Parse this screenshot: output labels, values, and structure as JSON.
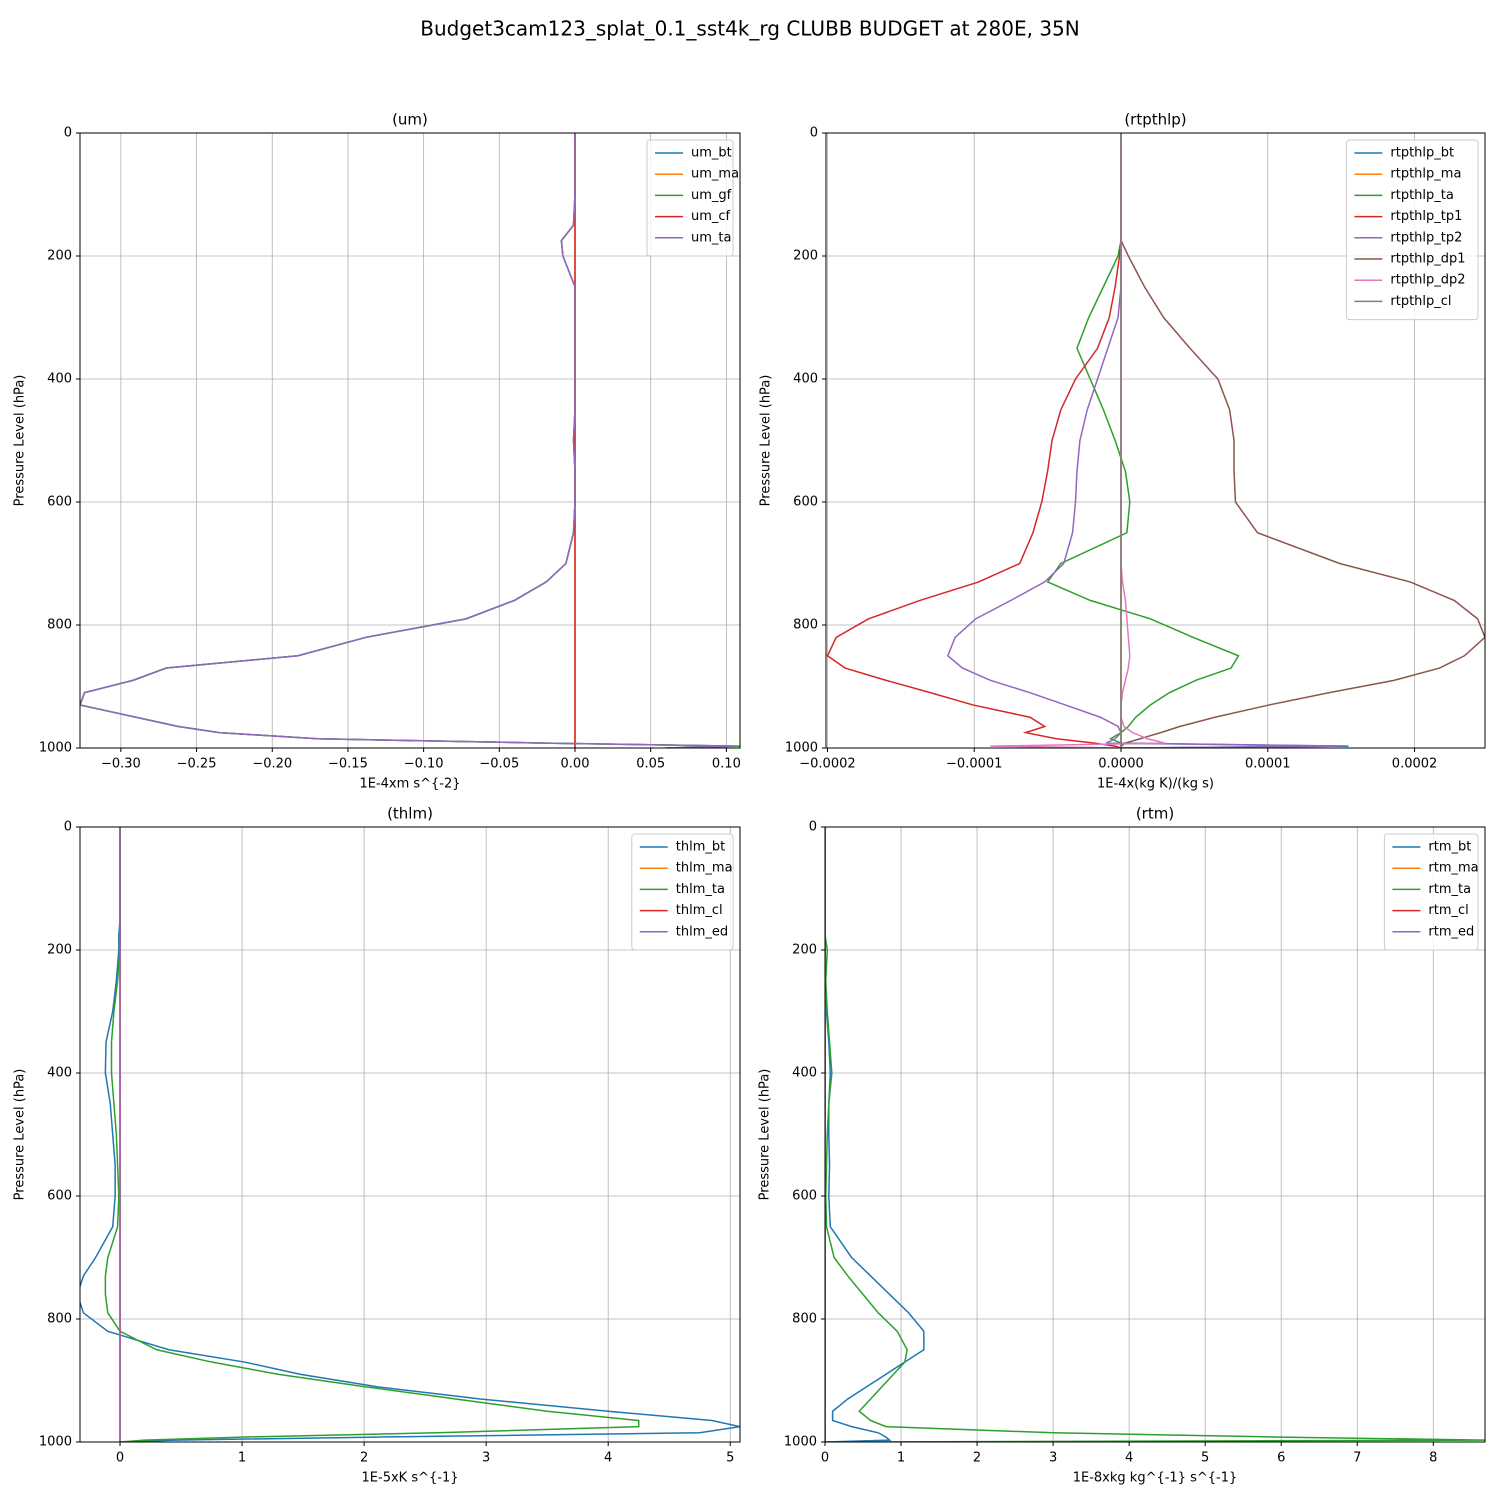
{
  "title": "Budget3cam123_splat_0.1_sst4k_rg CLUBB BUDGET at 280E, 35N",
  "chart_data": [
    {
      "type": "line",
      "title": "(um)",
      "xlabel": "1E-4xm s^{-2}",
      "ylabel": "Pressure Level (hPa)",
      "grid": true,
      "legend": "upper right",
      "xlim": [
        -0.327,
        0.109
      ],
      "ylim": [
        1000,
        0
      ],
      "xticks": [
        {
          "value": -0.3,
          "label": "−0.30"
        },
        {
          "value": -0.25,
          "label": "−0.25"
        },
        {
          "value": -0.2,
          "label": "−0.20"
        },
        {
          "value": -0.15,
          "label": "−0.15"
        },
        {
          "value": -0.1,
          "label": "−0.10"
        },
        {
          "value": -0.05,
          "label": "−0.05"
        },
        {
          "value": 0,
          "label": "0.00"
        },
        0.05,
        {
          "value": 0.1,
          "label": "0.10"
        }
      ],
      "yticks": [
        0,
        200,
        400,
        600,
        800,
        1000
      ],
      "y": [
        0,
        100,
        150,
        175,
        200,
        250,
        300,
        350,
        400,
        450,
        500,
        550,
        600,
        650,
        700,
        730,
        760,
        790,
        820,
        850,
        870,
        890,
        910,
        930,
        950,
        965,
        975,
        985,
        992,
        997,
        1000
      ],
      "series": [
        {
          "name": "um_bt",
          "color": "#1f77b4",
          "values": [
            0,
            0,
            -0.001,
            -0.009,
            -0.008,
            0,
            0,
            0,
            0,
            0,
            -0.001,
            0,
            0,
            -0.001,
            -0.006,
            -0.019,
            -0.04,
            -0.072,
            -0.138,
            -0.183,
            -0.27,
            -0.292,
            -0.324,
            -0.327,
            -0.29,
            -0.262,
            -0.235,
            -0.17,
            -0.02,
            0.105,
            0.06
          ]
        },
        {
          "name": "um_ma",
          "color": "#ff7f0e",
          "values": [
            0,
            0,
            0,
            0,
            0,
            0,
            0,
            0,
            0,
            0,
            0,
            0,
            0,
            0,
            0,
            0,
            0,
            0,
            0,
            0,
            0,
            0,
            0,
            0,
            0,
            0,
            0,
            0,
            0,
            0,
            0
          ]
        },
        {
          "name": "um_gf",
          "color": "#2ca02c",
          "values": [
            0,
            0,
            -0.001,
            -0.009,
            -0.008,
            0,
            0,
            0,
            0,
            0,
            -0.001,
            0,
            0,
            -0.001,
            -0.006,
            -0.019,
            -0.04,
            -0.072,
            -0.138,
            -0.183,
            -0.27,
            -0.292,
            -0.324,
            -0.327,
            -0.29,
            -0.262,
            -0.235,
            -0.17,
            -0.02,
            0.11,
            0.06
          ]
        },
        {
          "name": "um_cf",
          "color": "#d62728",
          "values": [
            0,
            0,
            0,
            0,
            0,
            0,
            0,
            0,
            0,
            0,
            0,
            0,
            0,
            0,
            0,
            0,
            0,
            0,
            0,
            0,
            0,
            0,
            0,
            0,
            0,
            0,
            0,
            0,
            0,
            0,
            0
          ]
        },
        {
          "name": "um_ta",
          "color": "#9467bd",
          "values": [
            0,
            0,
            -0.001,
            -0.009,
            -0.008,
            0,
            0,
            0,
            0,
            0,
            -0.001,
            0,
            0,
            -0.001,
            -0.006,
            -0.019,
            -0.04,
            -0.072,
            -0.138,
            -0.183,
            -0.27,
            -0.292,
            -0.324,
            -0.327,
            -0.29,
            -0.262,
            -0.235,
            -0.17,
            -0.02,
            0.105,
            0.06
          ]
        }
      ]
    },
    {
      "type": "line",
      "title": "(rtpthlp)",
      "xlabel": "1E-4x(kg K)/(kg s)",
      "ylabel": "Pressure Level (hPa)",
      "grid": true,
      "legend": "upper right",
      "xlim": [
        -0.000201,
        0.000248
      ],
      "ylim": [
        1000,
        0
      ],
      "xticks": [
        {
          "value": -0.0002,
          "label": "−0.0002"
        },
        {
          "value": -0.0001,
          "label": "−0.0001"
        },
        {
          "value": 0,
          "label": "0.0000"
        },
        0.0001,
        0.0002
      ],
      "yticks": [
        0,
        200,
        400,
        600,
        800,
        1000
      ],
      "y": [
        0,
        100,
        150,
        175,
        200,
        250,
        300,
        350,
        400,
        450,
        500,
        550,
        600,
        650,
        700,
        730,
        760,
        790,
        820,
        850,
        870,
        890,
        910,
        930,
        950,
        965,
        975,
        985,
        992,
        997,
        1000
      ],
      "series": [
        {
          "name": "rtpthlp_bt",
          "color": "#1f77b4",
          "values": [
            0,
            0,
            0,
            0,
            0,
            0,
            0,
            0,
            0,
            0,
            0,
            0,
            0,
            0,
            0,
            0,
            0,
            0,
            0,
            0,
            0,
            0,
            0,
            0,
            0,
            0,
            0,
            0,
            0,
            0.000155,
            0
          ]
        },
        {
          "name": "rtpthlp_ma",
          "color": "#ff7f0e",
          "values": [
            0,
            0,
            0,
            0,
            0,
            0,
            0,
            0,
            0,
            0,
            0,
            0,
            0,
            0,
            0,
            0,
            0,
            0,
            0,
            0,
            0,
            0,
            0,
            0,
            0,
            0,
            0,
            0,
            0,
            0,
            0
          ]
        },
        {
          "name": "rtpthlp_ta",
          "color": "#2ca02c",
          "values": [
            0,
            0,
            0,
            0,
            -2e-06,
            -1.2e-05,
            -2.2e-05,
            -3e-05,
            -2.1e-05,
            -1.2e-05,
            -4e-06,
            3e-06,
            6e-06,
            4e-06,
            -4.1e-05,
            -5e-05,
            -2.1e-05,
            2e-05,
            4.9e-05,
            8e-05,
            7.5e-05,
            5.1e-05,
            3.3e-05,
            2e-05,
            1e-05,
            5e-06,
            0,
            -7e-06,
            0,
            0,
            0
          ]
        },
        {
          "name": "rtpthlp_tp1",
          "color": "#d62728",
          "values": [
            0,
            0,
            0,
            0,
            -1e-06,
            -4e-06,
            -8e-06,
            -1.6e-05,
            -3.1e-05,
            -4.1e-05,
            -4.7e-05,
            -5e-05,
            -5.4e-05,
            -6e-05,
            -6.9e-05,
            -9.7e-05,
            -0.000137,
            -0.000172,
            -0.000194,
            -0.0002,
            -0.000188,
            -0.00016,
            -0.00013,
            -0.000101,
            -6.2e-05,
            -5.2e-05,
            -6.5e-05,
            -4.4e-05,
            -1.8e-05,
            -4e-06,
            0
          ]
        },
        {
          "name": "rtpthlp_tp2",
          "color": "#9467bd",
          "values": [
            0,
            0,
            0,
            0,
            0,
            0,
            -2e-06,
            -9e-06,
            -1.6e-05,
            -2.3e-05,
            -2.8e-05,
            -3e-05,
            -3.1e-05,
            -3.3e-05,
            -3.9e-05,
            -5.2e-05,
            -7.5e-05,
            -9.9e-05,
            -0.000113,
            -0.000118,
            -0.000108,
            -8.9e-05,
            -6.2e-05,
            -3.8e-05,
            -1.4e-05,
            -2e-06,
            0,
            -4e-06,
            -1e-05,
            0.00015,
            0
          ]
        },
        {
          "name": "rtpthlp_dp1",
          "color": "#8c564b",
          "values": [
            0,
            0,
            0,
            0,
            5e-06,
            1.6e-05,
            2.9e-05,
            4.7e-05,
            6.6e-05,
            7.4e-05,
            7.7e-05,
            7.7e-05,
            7.8e-05,
            9.3e-05,
            0.000149,
            0.000197,
            0.000227,
            0.000243,
            0.000248,
            0.000234,
            0.000217,
            0.000186,
            0.000142,
            0.000101,
            6.4e-05,
            4e-05,
            2.7e-05,
            1.3e-05,
            3e-06,
            0,
            0
          ]
        },
        {
          "name": "rtpthlp_dp2",
          "color": "#e377c2",
          "values": [
            0,
            0,
            0,
            0,
            0,
            0,
            0,
            0,
            0,
            0,
            0,
            0,
            0,
            0,
            0,
            1e-06,
            3e-06,
            4e-06,
            5e-06,
            6e-06,
            5e-06,
            3e-06,
            1e-06,
            0,
            0,
            2e-06,
            8e-06,
            1.8e-05,
            3e-05,
            -8.9e-05,
            0
          ]
        },
        {
          "name": "rtpthlp_cl",
          "color": "#7f7f7f",
          "values": [
            0,
            0,
            0,
            0,
            0,
            0,
            0,
            0,
            0,
            0,
            0,
            0,
            0,
            0,
            0,
            0,
            0,
            0,
            0,
            0,
            0,
            0,
            0,
            0,
            0,
            0,
            0,
            0,
            0,
            0,
            0
          ]
        }
      ]
    },
    {
      "type": "line",
      "title": "(thlm)",
      "xlabel": "1E-5xK s^{-1}",
      "ylabel": "Pressure Level (hPa)",
      "grid": true,
      "legend": "upper right",
      "xlim": [
        -0.328,
        5.08
      ],
      "ylim": [
        1000,
        0
      ],
      "xticks": [
        0,
        1,
        2,
        3,
        4,
        5
      ],
      "yticks": [
        0,
        200,
        400,
        600,
        800,
        1000
      ],
      "y": [
        0,
        100,
        150,
        175,
        200,
        250,
        300,
        350,
        400,
        450,
        500,
        550,
        600,
        650,
        700,
        730,
        760,
        790,
        820,
        850,
        870,
        890,
        910,
        930,
        950,
        965,
        975,
        985,
        992,
        997,
        1000
      ],
      "series": [
        {
          "name": "thlm_bt",
          "color": "#1f77b4",
          "values": [
            0,
            0,
            0,
            -0.01,
            -0.01,
            -0.03,
            -0.06,
            -0.115,
            -0.12,
            -0.08,
            -0.06,
            -0.04,
            -0.04,
            -0.06,
            -0.2,
            -0.3,
            -0.35,
            -0.3,
            -0.1,
            0.4,
            1.02,
            1.48,
            2.1,
            2.95,
            4.0,
            4.85,
            5.08,
            4.75,
            2.1,
            0.45,
            0
          ]
        },
        {
          "name": "thlm_ma",
          "color": "#ff7f0e",
          "values": [
            0,
            0,
            0,
            0,
            0,
            0,
            0,
            0,
            0,
            0,
            0,
            0,
            0,
            0,
            0,
            0,
            0,
            0,
            0,
            0,
            0,
            0,
            0,
            0,
            0,
            0,
            0,
            0,
            0,
            0,
            0
          ]
        },
        {
          "name": "thlm_ta",
          "color": "#2ca02c",
          "values": [
            0,
            0,
            0,
            0,
            0,
            -0.02,
            -0.05,
            -0.07,
            -0.07,
            -0.05,
            -0.03,
            -0.02,
            -0.01,
            -0.02,
            -0.1,
            -0.12,
            -0.12,
            -0.1,
            0,
            0.3,
            0.75,
            1.3,
            2.0,
            2.75,
            3.5,
            4.25,
            4.25,
            2.6,
            1.0,
            0.2,
            0
          ]
        },
        {
          "name": "thlm_cl",
          "color": "#d62728",
          "values": [
            0,
            0,
            0,
            0,
            0,
            0,
            0,
            0,
            0,
            0,
            0,
            0,
            0,
            0,
            0,
            0,
            0,
            0,
            0,
            0,
            0,
            0,
            0,
            0,
            0,
            0,
            0,
            0,
            0,
            0,
            0
          ]
        },
        {
          "name": "thlm_ed",
          "color": "#9467bd",
          "values": [
            0,
            0,
            0,
            0,
            0,
            0,
            0,
            0,
            0,
            0,
            0,
            0,
            0,
            0,
            0,
            0,
            0,
            0,
            0,
            0,
            0,
            0,
            0,
            0,
            0,
            0,
            0,
            0,
            0,
            0,
            0
          ]
        }
      ]
    },
    {
      "type": "line",
      "title": "(rtm)",
      "xlabel": "1E-8xkg kg^{-1} s^{-1}",
      "ylabel": "Pressure Level (hPa)",
      "grid": true,
      "legend": "upper right",
      "xlim": [
        0,
        8.68
      ],
      "ylim": [
        1000,
        0
      ],
      "xticks": [
        0,
        1,
        2,
        3,
        4,
        5,
        6,
        7,
        8
      ],
      "yticks": [
        0,
        200,
        400,
        600,
        800,
        1000
      ],
      "y": [
        0,
        100,
        150,
        175,
        200,
        250,
        300,
        350,
        400,
        450,
        500,
        550,
        600,
        650,
        700,
        730,
        760,
        790,
        820,
        850,
        870,
        890,
        910,
        930,
        950,
        965,
        975,
        985,
        992,
        997,
        1000
      ],
      "series": [
        {
          "name": "rtm_bt",
          "color": "#1f77b4",
          "values": [
            0,
            0,
            0,
            0,
            0,
            0,
            0.02,
            0.05,
            0.07,
            0.05,
            0.05,
            0.06,
            0.05,
            0.07,
            0.35,
            0.6,
            0.85,
            1.1,
            1.3,
            1.3,
            1.05,
            0.8,
            0.55,
            0.3,
            0.1,
            0.1,
            0.35,
            0.7,
            0.8,
            0.85,
            0
          ]
        },
        {
          "name": "rtm_ma",
          "color": "#ff7f0e",
          "values": [
            0,
            0,
            0,
            0,
            0,
            0,
            0,
            0,
            0,
            0,
            0,
            0,
            0,
            0,
            0,
            0,
            0,
            0,
            0,
            0,
            0,
            0,
            0,
            0,
            0,
            0,
            0,
            0,
            0,
            0,
            0
          ]
        },
        {
          "name": "rtm_ta",
          "color": "#2ca02c",
          "values": [
            0,
            0,
            0,
            0,
            0.03,
            0.01,
            0.03,
            0.06,
            0.09,
            0.05,
            0.03,
            0.02,
            0.01,
            0.02,
            0.12,
            0.3,
            0.5,
            0.7,
            0.95,
            1.08,
            1.05,
            0.9,
            0.75,
            0.6,
            0.45,
            0.6,
            0.8,
            3,
            6,
            8.7,
            0
          ]
        },
        {
          "name": "rtm_cl",
          "color": "#d62728",
          "values": [
            0,
            0,
            0,
            0,
            0,
            0,
            0,
            0,
            0,
            0,
            0,
            0,
            0,
            0,
            0,
            0,
            0,
            0,
            0,
            0,
            0,
            0,
            0,
            0,
            0,
            0,
            0,
            0,
            0,
            0,
            0
          ]
        },
        {
          "name": "rtm_ed",
          "color": "#9467bd",
          "values": [
            0,
            0,
            0,
            0,
            0,
            0,
            0,
            0,
            0,
            0,
            0,
            0,
            0,
            0,
            0,
            0,
            0,
            0,
            0,
            0,
            0,
            0,
            0,
            0,
            0,
            0,
            0,
            0,
            0,
            0,
            0
          ]
        }
      ]
    }
  ]
}
